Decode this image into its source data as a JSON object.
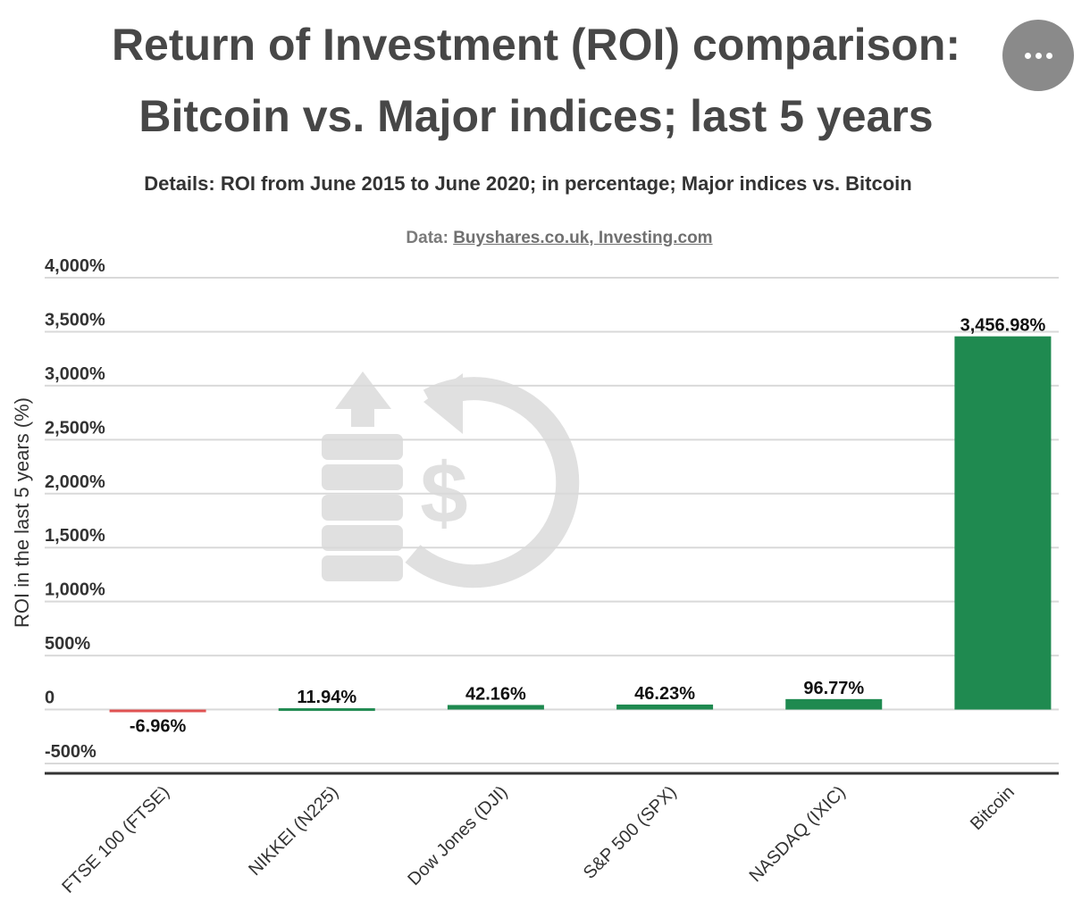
{
  "title_line1": "Return of Investment (ROI) comparison:",
  "title_line2": "Bitcoin vs. Major indices; last 5 years",
  "subtitle": "Details: ROI from June 2015 to June 2020; in percentage; Major indices vs. Bitcoin",
  "source": {
    "prefix": "Data:",
    "link_text": "Buyshares.co.uk, Investing.com"
  },
  "more_button_icon": "more-horizontal-icon",
  "watermark_icon": "roi-dollar-growth-icon",
  "colors": {
    "positive": "#1f8a50",
    "negative": "#e05252",
    "grid": "#d9d9d9",
    "axis": "#333333",
    "text": "#333333",
    "watermark": "#e0e0e0"
  },
  "chart_data": {
    "type": "bar",
    "ylabel": "ROI in the last 5 years (%)",
    "xlabel": "",
    "ylim": [
      -500,
      4000
    ],
    "y_ticks": [
      4000,
      3500,
      3000,
      2500,
      2000,
      1500,
      1000,
      500,
      0,
      -500
    ],
    "y_tick_labels": [
      "4,000%",
      "3,500%",
      "3,000%",
      "2,500%",
      "2,000%",
      "1,500%",
      "1,000%",
      "500%",
      "0",
      "-500%"
    ],
    "categories": [
      "FTSE 100 (FTSE)",
      "NIKKEI (N225)",
      "Dow Jones (DJI)",
      "S&P 500 (SPX)",
      "NASDAQ (IXIC)",
      "Bitcoin"
    ],
    "values": [
      -6.96,
      11.94,
      42.16,
      46.23,
      96.77,
      3456.98
    ],
    "data_labels": [
      "-6.96%",
      "11.94%",
      "42.16%",
      "46.23%",
      "96.77%",
      "3,456.98%"
    ],
    "grid": true,
    "legend": "none"
  }
}
